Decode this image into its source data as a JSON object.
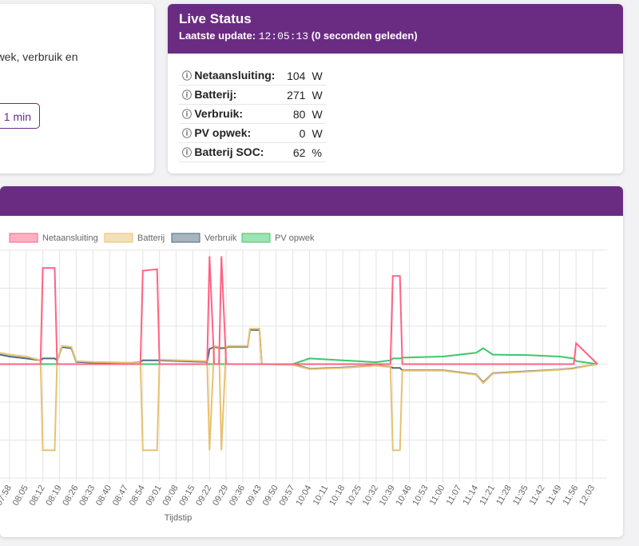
{
  "left_card": {
    "text": "opwek, verbruik en",
    "button": "1 min"
  },
  "live_status": {
    "title": "Live Status",
    "update_label": "Laatste update:",
    "update_time": "12:05:13",
    "update_suffix": "(0 seconden geleden)",
    "rows": [
      {
        "label": "Netaansluiting:",
        "value": 104,
        "unit": "W"
      },
      {
        "label": "Batterij:",
        "value": 271,
        "unit": "W"
      },
      {
        "label": "Verbruik:",
        "value": 80,
        "unit": "W"
      },
      {
        "label": "PV opwek:",
        "value": 0,
        "unit": "W"
      },
      {
        "label": "Batterij SOC:",
        "value": 62,
        "unit": "%"
      }
    ]
  },
  "chart_data": {
    "type": "line",
    "xlabel": "Tijdstip",
    "x": [
      "07:54",
      "07:58",
      "08:05",
      "08:11",
      "08:12",
      "08:17",
      "08:18",
      "08:20",
      "08:24",
      "08:26",
      "08:33",
      "08:47",
      "08:53",
      "08:54",
      "09:00",
      "09:01",
      "09:10",
      "09:21",
      "09:22",
      "09:24",
      "09:26",
      "09:27",
      "09:29",
      "09:30",
      "09:38",
      "09:39",
      "09:43",
      "09:44",
      "09:57",
      "10:04",
      "10:18",
      "10:32",
      "10:38",
      "10:39",
      "10:42",
      "10:43",
      "11:00",
      "11:14",
      "11:17",
      "11:21",
      "11:35",
      "11:49",
      "11:55",
      "11:56",
      "12:05"
    ],
    "xlim": [
      "07:54",
      "12:09"
    ],
    "xticks": [
      "07:58",
      "08:05",
      "08:12",
      "08:19",
      "08:26",
      "08:33",
      "08:40",
      "08:47",
      "08:54",
      "09:01",
      "09:08",
      "09:15",
      "09:22",
      "09:29",
      "09:36",
      "09:43",
      "09:50",
      "09:57",
      "10:04",
      "10:11",
      "10:18",
      "10:25",
      "10:32",
      "10:39",
      "10:46",
      "10:53",
      "11:00",
      "11:07",
      "11:14",
      "11:21",
      "11:28",
      "11:35",
      "11:42",
      "11:49",
      "11:56",
      "12:03"
    ],
    "ylim": [
      -3000,
      3000
    ],
    "yticks": [
      -3000,
      -2000,
      -1000,
      0,
      1000,
      2000,
      3000
    ],
    "grid": true,
    "series": [
      {
        "name": "Netaansluiting",
        "color": "#ff6384",
        "values": [
          0,
          0,
          0,
          0,
          2530,
          2530,
          0,
          0,
          0,
          0,
          0,
          0,
          0,
          2460,
          2500,
          0,
          0,
          0,
          2840,
          0,
          0,
          2840,
          0,
          0,
          0,
          0,
          0,
          0,
          0,
          0,
          0,
          0,
          0,
          2320,
          2320,
          0,
          0,
          0,
          0,
          0,
          0,
          0,
          0,
          550,
          0
        ]
      },
      {
        "name": "Batterij",
        "color": "#e8c170",
        "values": [
          300,
          250,
          200,
          100,
          -2270,
          -2270,
          100,
          480,
          450,
          80,
          60,
          40,
          50,
          -2270,
          -2270,
          120,
          100,
          80,
          -2270,
          480,
          450,
          -2270,
          450,
          480,
          480,
          930,
          930,
          0,
          -20,
          -130,
          -100,
          -40,
          -80,
          -2270,
          -2270,
          -170,
          -170,
          -280,
          -500,
          -250,
          -200,
          -150,
          -120,
          -100,
          0
        ]
      },
      {
        "name": "Verbruik",
        "color": "#4e6b80",
        "values": [
          250,
          200,
          150,
          100,
          150,
          150,
          100,
          450,
          420,
          60,
          40,
          30,
          60,
          100,
          100,
          100,
          80,
          60,
          400,
          450,
          430,
          420,
          430,
          460,
          460,
          900,
          900,
          0,
          0,
          -120,
          -90,
          -30,
          -70,
          -100,
          -100,
          -160,
          -160,
          -270,
          -480,
          -240,
          -190,
          -140,
          -110,
          -90,
          0
        ]
      },
      {
        "name": "PV opwek",
        "color": "#3cc76a",
        "values": [
          0,
          0,
          0,
          0,
          0,
          0,
          0,
          0,
          0,
          0,
          0,
          0,
          0,
          0,
          0,
          0,
          0,
          0,
          0,
          0,
          0,
          0,
          0,
          0,
          0,
          0,
          0,
          0,
          0,
          150,
          100,
          50,
          100,
          150,
          150,
          170,
          200,
          300,
          420,
          250,
          240,
          200,
          150,
          80,
          0
        ]
      }
    ]
  }
}
